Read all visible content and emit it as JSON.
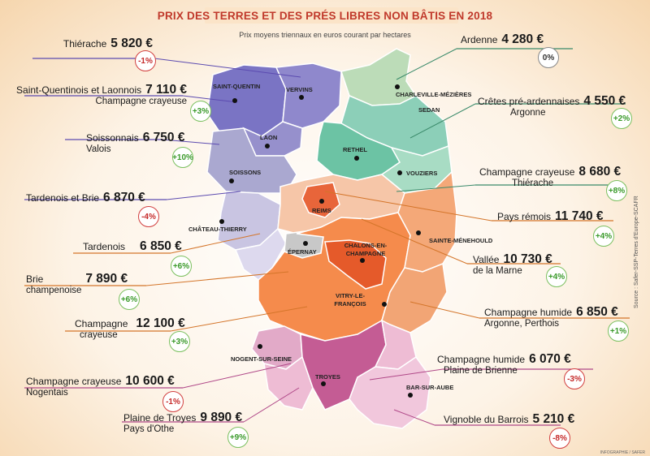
{
  "header": {
    "title": "PRIX DES TERRES ET DES PRÉS LIBRES NON BÂTIS EN 2018",
    "subtitle": "Prix moyens triennaux en euros courant par hectares"
  },
  "colors": {
    "thierache": "#8f88cc",
    "stquentin": "#7a74c4",
    "ardenne": "#bcdcb8",
    "charleville": "#8ccfb8",
    "rethel": "#6cc3a4",
    "soissonnais": "#aaa8d0",
    "tardenois": "#c9c5e2",
    "reims": "#e8653a",
    "pays_remois": "#f6c6a8",
    "marne": "#f58b4c",
    "ste_menehould": "#f4a878",
    "chalons": "#e55a2a",
    "humide": "#f2a575",
    "epernay": "#c8c8c8",
    "nogentais": "#e2aac8",
    "troyes": "#c45c94",
    "brienne": "#eebcd4",
    "barrois": "#f1c7dc",
    "positive": "#7cc060",
    "negative": "#d24040"
  },
  "regions": [
    {
      "name": "Thiérache",
      "price": "5 820 €",
      "sub": "",
      "change": "-1%"
    },
    {
      "name": "Saint-Quentinois et Laonnois",
      "price": "7 110 €",
      "sub": "Champagne crayeuse",
      "change": "+3%"
    },
    {
      "name": "Soissonnais",
      "price": "6 750 €",
      "sub": "Valois",
      "change": "+10%"
    },
    {
      "name": "Tardenois et Brie",
      "price": "6 870 €",
      "sub": "",
      "change": "-4%"
    },
    {
      "name": "Tardenois",
      "price": "6 850 €",
      "sub": "",
      "change": "+6%"
    },
    {
      "name": "Brie",
      "price": "7 890 €",
      "sub": "champenoise",
      "change": "+6%"
    },
    {
      "name": "Champagne",
      "price": "12 100 €",
      "sub": "crayeuse",
      "change": "+3%"
    },
    {
      "name": "Champagne crayeuse",
      "price": "10 600 €",
      "sub": "Nogentais",
      "change": "-1%"
    },
    {
      "name": "Plaine de Troyes",
      "price": "9 890 €",
      "sub": "Pays d'Othe",
      "change": "+9%"
    },
    {
      "name": "Ardenne",
      "price": "4 280 €",
      "sub": "",
      "change": "0%"
    },
    {
      "name": "Crêtes pré-ardennaises",
      "price": "4 550 €",
      "sub": "Argonne",
      "change": "+2%"
    },
    {
      "name": "Champagne crayeuse",
      "price": "8 680 €",
      "sub": "Thiérache",
      "change": "+8%"
    },
    {
      "name": "Pays rémois",
      "price": "11 740 €",
      "sub": "",
      "change": "+4%"
    },
    {
      "name": "Vallée",
      "price": "10 730 €",
      "sub": "de la Marne",
      "change": "+4%"
    },
    {
      "name": "Champagne humide",
      "price": "6 850 €",
      "sub": "Argonne, Perthois",
      "change": "+1%"
    },
    {
      "name": "Champagne humide",
      "price": "6 070 €",
      "sub": "Plaine de Brienne",
      "change": "-3%"
    },
    {
      "name": "Vignoble du Barrois",
      "price": "5 210 €",
      "sub": "",
      "change": "-8%"
    }
  ],
  "cities": [
    "SAINT-QUENTIN",
    "VERVINS",
    "LAON",
    "SOISSONS",
    "CHÂTEAU-THIERRY",
    "REIMS",
    "ÉPERNAY",
    "CHALONS-EN-CHAMPAGNE",
    "VITRY-LE-FRANÇOIS",
    "SAINTE-MÉNEHOULD",
    "CHARLEVILLE-MÉZIÈRES",
    "SEDAN",
    "RETHEL",
    "VOUZIERS",
    "NOGENT-SUR-SEINE",
    "TROYES",
    "BAR-SUR-AUBE"
  ],
  "footer": {
    "source": "Source : Safer-SSP-Terres d'Europe-SCAFR",
    "credit": "INFOGRAPHIE / SAFER"
  }
}
